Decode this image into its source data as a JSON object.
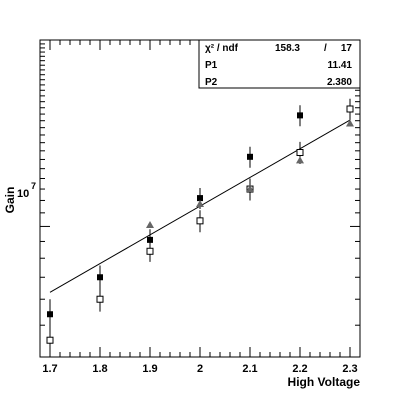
{
  "chart_data": {
    "type": "scatter",
    "xlabel": "High Voltage",
    "ylabel": "Gain",
    "log_y": true,
    "xlim": [
      1.68,
      2.32
    ],
    "ylim": [
      4000000,
      37000000
    ],
    "x_ticks": [
      "1.7",
      "1.8",
      "1.9",
      "2",
      "2.1",
      "2.2",
      "2.3"
    ],
    "x_tick_values": [
      1.7,
      1.8,
      1.9,
      2.0,
      2.1,
      2.2,
      2.3
    ],
    "y_tick_mantissa": "10",
    "y_tick_exponent": "7",
    "y_tick_value": 10000000,
    "series": [
      {
        "marker": "filled-square",
        "color": "#000000",
        "x": [
          1.7,
          1.8,
          1.9,
          2.0,
          2.1,
          2.2,
          2.3
        ],
        "y": [
          5400000,
          7000000,
          9100000,
          12200000,
          16300000,
          21800000,
          29500000
        ],
        "err": [
          600000,
          600000,
          700000,
          900000,
          1200000,
          1600000,
          2200000
        ]
      },
      {
        "marker": "open-square",
        "color": "#000000",
        "x": [
          1.7,
          1.8,
          1.9,
          2.0,
          2.1,
          2.2,
          2.3
        ],
        "y": [
          4500000,
          6000000,
          8400000,
          10400000,
          13000000,
          16800000,
          22800000
        ],
        "err": [
          400000,
          500000,
          600000,
          800000,
          1000000,
          1300000,
          1700000
        ]
      },
      {
        "marker": "filled-triangle",
        "color": "#666666",
        "x": [
          1.9,
          2.0,
          2.1,
          2.2,
          2.3
        ],
        "y": [
          10100000,
          11700000,
          13000000,
          15900000,
          20600000
        ]
      }
    ],
    "fit": {
      "x": [
        1.7,
        2.3
      ],
      "y": [
        6300000,
        21100000
      ]
    },
    "stats": {
      "chi2_label": "χ² / ndf",
      "chi2_value": "158.3",
      "chi2_sep": "/",
      "ndf_value": "17",
      "p1_label": "P1",
      "p1_value": "11.41",
      "p2_label": "P2",
      "p2_value": "2.380"
    }
  }
}
